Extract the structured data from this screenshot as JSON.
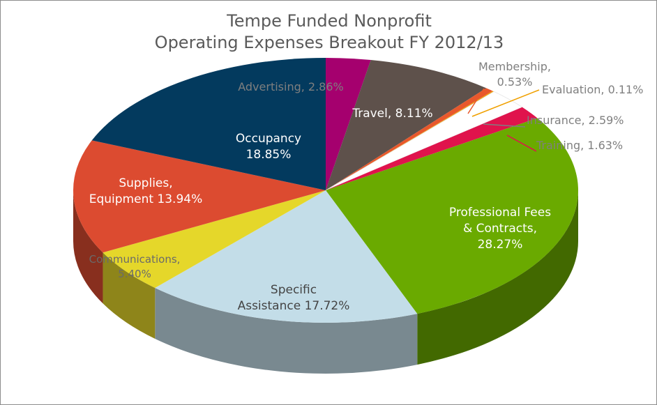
{
  "chart_data": {
    "type": "pie",
    "title_lines": [
      "Tempe Funded Nonprofit",
      "Operating Expenses Breakout FY 2012/13"
    ],
    "slices": [
      {
        "name": "Advertising",
        "value": 2.86,
        "color": "#a5006e",
        "label_lines": [
          "Advertising, 2.86%"
        ]
      },
      {
        "name": "Travel",
        "value": 8.11,
        "color": "#5e514b",
        "label_lines": [
          "Travel, 8.11%"
        ]
      },
      {
        "name": "Membership",
        "value": 0.53,
        "color": "#e8582c",
        "label_lines": [
          "Membership,",
          "0.53%"
        ]
      },
      {
        "name": "Evaluation",
        "value": 0.11,
        "color": "#f0a000",
        "label_lines": [
          "Evaluation, 0.11%"
        ]
      },
      {
        "name": "Insurance",
        "value": 2.59,
        "color": "#ffffff",
        "label_lines": [
          "Insurance, 2.59%"
        ]
      },
      {
        "name": "Training",
        "value": 1.63,
        "color": "#e0134c",
        "label_lines": [
          "Training, 1.63%"
        ]
      },
      {
        "name": "Professional Fees & Contracts",
        "value": 28.27,
        "color": "#6aaa00",
        "label_lines": [
          "Professional Fees",
          "& Contracts,",
          "28.27%"
        ]
      },
      {
        "name": "Specific Assistance",
        "value": 17.72,
        "color": "#c3dde8",
        "label_lines": [
          "Specific",
          "Assistance 17.72%"
        ]
      },
      {
        "name": "Communications",
        "value": 5.4,
        "color": "#e5d72a",
        "label_lines": [
          "Communications,",
          "5.40%"
        ]
      },
      {
        "name": "Supplies, Equipment",
        "value": 13.94,
        "color": "#dc4b30",
        "label_lines": [
          "Supplies,",
          "Equipment 13.94%"
        ]
      },
      {
        "name": "Occupancy",
        "value": 18.85,
        "color": "#033a5e",
        "label_lines": [
          "Occupancy",
          "18.85%"
        ]
      }
    ]
  }
}
